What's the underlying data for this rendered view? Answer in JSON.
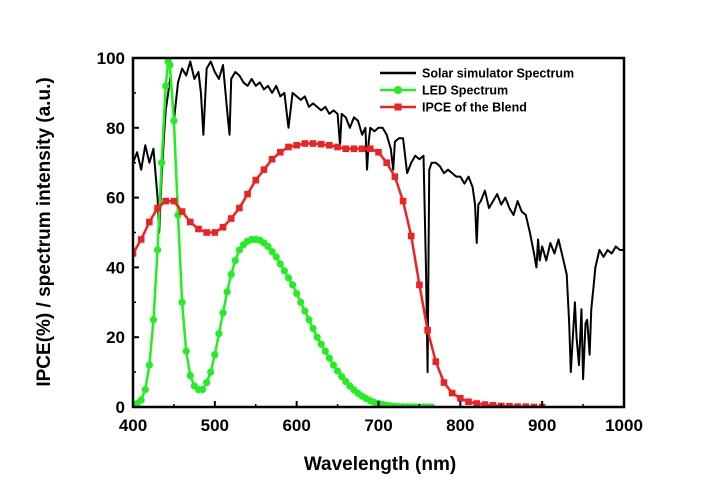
{
  "chart_data": {
    "type": "line",
    "xlabel": "Wavelength (nm)",
    "ylabel": "IPCE(%) / spectrum intensity (a.u.)",
    "xlim": [
      400,
      1000
    ],
    "ylim": [
      0,
      100
    ],
    "xticks": [
      400,
      500,
      600,
      700,
      800,
      900,
      1000
    ],
    "yticks": [
      0,
      20,
      40,
      60,
      80,
      100
    ],
    "legend_position": "top-right",
    "series": [
      {
        "name": "Solar simulator Spectrum",
        "color": "#000000",
        "marker": "none",
        "x": [
          400,
          405,
          410,
          415,
          420,
          425,
          430,
          432,
          435,
          438,
          440,
          443,
          446,
          450,
          455,
          460,
          465,
          470,
          475,
          480,
          483,
          486,
          490,
          495,
          500,
          505,
          510,
          515,
          518,
          520,
          525,
          530,
          535,
          540,
          545,
          550,
          555,
          560,
          565,
          570,
          575,
          580,
          585,
          588,
          590,
          595,
          600,
          605,
          610,
          615,
          620,
          625,
          630,
          635,
          640,
          645,
          650,
          653,
          655,
          660,
          665,
          670,
          675,
          680,
          684,
          686,
          688,
          690,
          695,
          700,
          705,
          710,
          715,
          718,
          720,
          725,
          730,
          735,
          740,
          745,
          750,
          755,
          758,
          760,
          762,
          765,
          770,
          775,
          780,
          785,
          790,
          795,
          800,
          805,
          810,
          815,
          818,
          820,
          822,
          825,
          830,
          835,
          840,
          845,
          850,
          855,
          860,
          865,
          870,
          875,
          880,
          885,
          890,
          893,
          895,
          897,
          900,
          905,
          910,
          915,
          920,
          925,
          930,
          933,
          935,
          937,
          940,
          942,
          945,
          948,
          950,
          953,
          955,
          958,
          960,
          963,
          965,
          970,
          975,
          980,
          985,
          990,
          995,
          1000
        ],
        "y": [
          70,
          73,
          68,
          75,
          70,
          74,
          60,
          50,
          66,
          78,
          85,
          90,
          95,
          82,
          93,
          97,
          95,
          99,
          94,
          96,
          90,
          78,
          97,
          99,
          96,
          94,
          98,
          85,
          78,
          94,
          96,
          95,
          93,
          92,
          94,
          92,
          93,
          91,
          92,
          90,
          92,
          89,
          90,
          84,
          80,
          90,
          89,
          88,
          89,
          86,
          87,
          86,
          85,
          86,
          84,
          85,
          84,
          75,
          84,
          83,
          80,
          83,
          82,
          78,
          80,
          68,
          76,
          80,
          79,
          80,
          80,
          78,
          74,
          68,
          76,
          77,
          77,
          67,
          70,
          72,
          71,
          72,
          40,
          10,
          68,
          70,
          70,
          69,
          67,
          68,
          67,
          66,
          66,
          64,
          66,
          63,
          58,
          47,
          58,
          59,
          62,
          57,
          59,
          61,
          58,
          60,
          57,
          55,
          59,
          56,
          55,
          50,
          44,
          40,
          48,
          42,
          46,
          42,
          47,
          44,
          48,
          43,
          38,
          24,
          10,
          18,
          30,
          20,
          12,
          28,
          8,
          24,
          25,
          15,
          28,
          35,
          40,
          45,
          43,
          45,
          44,
          46,
          45,
          45
        ]
      },
      {
        "name": "LED Spectrum",
        "color": "#22ee22",
        "marker": "circle",
        "x": [
          400,
          405,
          410,
          415,
          420,
          425,
          430,
          435,
          440,
          443,
          445,
          450,
          455,
          460,
          465,
          470,
          475,
          480,
          485,
          490,
          495,
          500,
          505,
          510,
          515,
          520,
          525,
          530,
          535,
          540,
          545,
          550,
          555,
          560,
          565,
          570,
          575,
          580,
          585,
          590,
          595,
          600,
          605,
          610,
          615,
          620,
          625,
          630,
          635,
          640,
          645,
          650,
          655,
          660,
          665,
          670,
          675,
          680,
          685,
          690,
          695,
          700,
          705,
          710,
          715,
          720,
          725,
          730,
          735,
          740,
          745,
          750,
          755,
          760,
          765
        ],
        "y": [
          0,
          1,
          2,
          5,
          12,
          25,
          45,
          70,
          92,
          99,
          98,
          82,
          55,
          30,
          16,
          9,
          6,
          5,
          5,
          7,
          10,
          15,
          21,
          27,
          33,
          38,
          42,
          45,
          46.5,
          47.5,
          48,
          48,
          47.8,
          47,
          46,
          44.5,
          43,
          41,
          39,
          37,
          35,
          32.5,
          30,
          27.5,
          25,
          22.5,
          20,
          18,
          16,
          14,
          12,
          10.3,
          8.7,
          7.3,
          6,
          4.9,
          3.9,
          3.1,
          2.4,
          1.8,
          1.3,
          1,
          0.7,
          0.5,
          0.3,
          0.2,
          0.1,
          0.08,
          0.05,
          0.03,
          0.02,
          0.01,
          0,
          0,
          0
        ]
      },
      {
        "name": "IPCE of the Blend",
        "color": "#ee2222",
        "marker": "square",
        "x": [
          400,
          410,
          420,
          430,
          440,
          450,
          460,
          470,
          480,
          490,
          500,
          510,
          520,
          530,
          540,
          550,
          560,
          570,
          580,
          590,
          600,
          610,
          620,
          630,
          640,
          650,
          660,
          670,
          680,
          690,
          700,
          710,
          720,
          730,
          740,
          750,
          760,
          770,
          780,
          790,
          800,
          810,
          820,
          830,
          840,
          850,
          860,
          870,
          880,
          890,
          900
        ],
        "y": [
          44,
          48,
          53,
          57,
          59,
          59,
          56,
          53,
          51,
          50,
          50,
          51.5,
          54,
          57,
          61,
          65,
          68,
          71,
          73,
          74.5,
          75,
          75.5,
          75.5,
          75.3,
          75,
          74.5,
          74,
          74,
          74,
          74,
          73,
          70,
          66,
          59,
          49,
          35,
          22,
          13,
          7,
          4,
          2.5,
          1.5,
          1,
          0.7,
          0.5,
          0.3,
          0.2,
          0.1,
          0.1,
          0,
          0
        ]
      }
    ]
  }
}
